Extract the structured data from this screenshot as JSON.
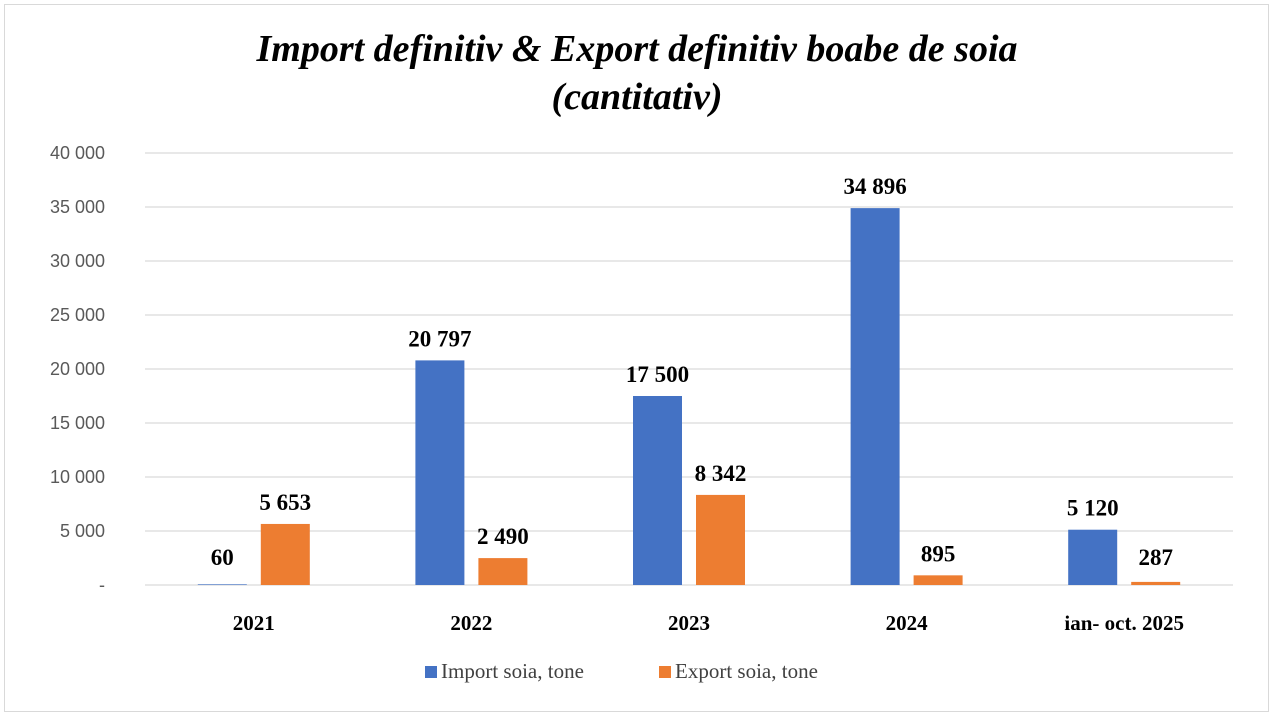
{
  "chart_data": {
    "type": "bar",
    "title_lines": [
      "Import definitiv & Export definitiv boabe de soia",
      "(cantitativ)"
    ],
    "categories": [
      "2021",
      "2022",
      "2023",
      "2024",
      "ian- oct. 2025"
    ],
    "series": [
      {
        "name": "Import soia, tone",
        "color": "#4472c4",
        "values": [
          60,
          20797,
          17500,
          34896,
          5120
        ],
        "labels": [
          "60",
          "20 797",
          "17 500",
          "34 896",
          "5 120"
        ]
      },
      {
        "name": "Export soia, tone",
        "color": "#ed7d31",
        "values": [
          5653,
          2490,
          8342,
          895,
          287
        ],
        "labels": [
          "5 653",
          "2 490",
          "8 342",
          "895",
          "287"
        ]
      }
    ],
    "ylim": [
      0,
      40000
    ],
    "yticks": [
      0,
      5000,
      10000,
      15000,
      20000,
      25000,
      30000,
      35000,
      40000
    ],
    "ytick_labels": [
      "-",
      "5 000",
      "10 000",
      "15 000",
      "20 000",
      "25 000",
      "30 000",
      "35 000",
      "40 000"
    ],
    "grid": true,
    "legend_position": "bottom"
  }
}
